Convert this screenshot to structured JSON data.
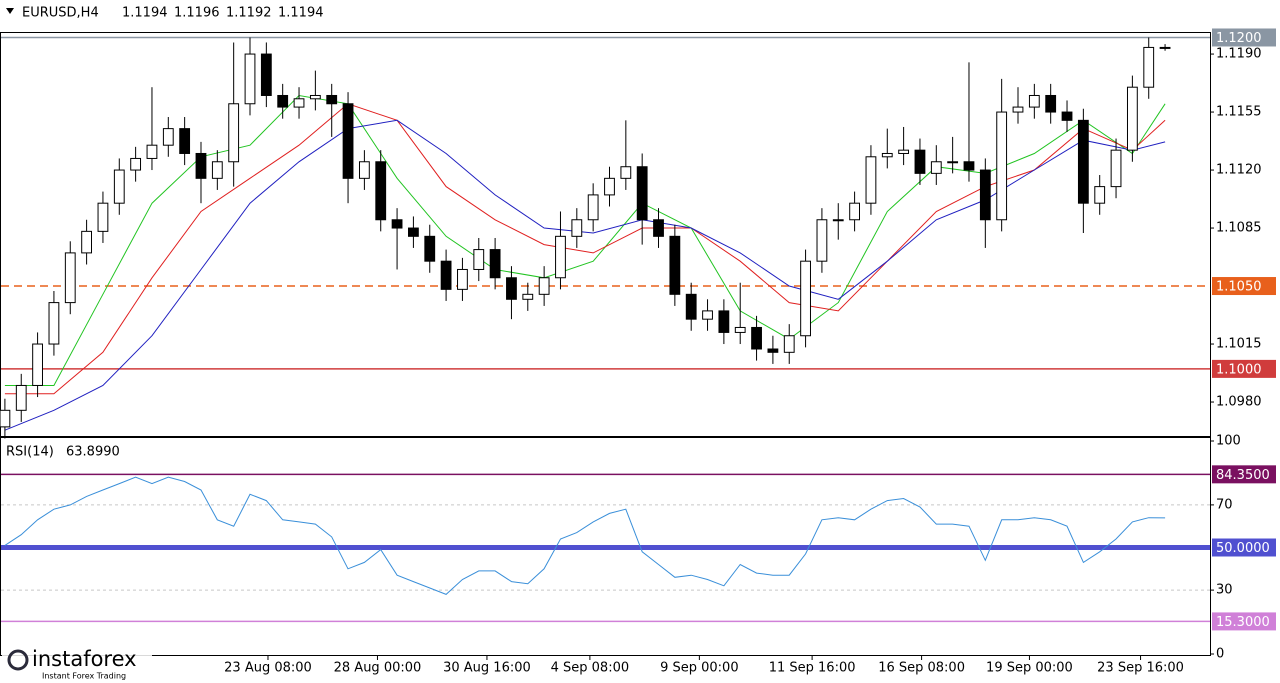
{
  "chart_data": [
    {
      "type": "candlestick",
      "title": "EURUSD,H4",
      "last_ohlc": [
        1.1194,
        1.1196,
        1.1192,
        1.1194
      ],
      "open": [
        1.0965,
        1.0975,
        1.099,
        1.1015,
        1.104,
        1.107,
        1.1083,
        1.11,
        1.112,
        1.1127,
        1.1135,
        1.1145,
        1.113,
        1.1115,
        1.1125,
        1.116,
        1.119,
        1.1165,
        1.1158,
        1.1163,
        1.1165,
        1.116,
        1.1115,
        1.1125,
        1.109,
        1.1085,
        1.108,
        1.1065,
        1.1048,
        1.106,
        1.1072,
        1.1055,
        1.1042,
        1.1045,
        1.1055,
        1.108,
        1.109,
        1.1105,
        1.1115,
        1.1122,
        1.109,
        1.108,
        1.1045,
        1.103,
        1.1035,
        1.1022,
        1.1025,
        1.1012,
        1.101,
        1.102,
        1.1065,
        1.109,
        1.109,
        1.11,
        1.1128,
        1.113,
        1.1132,
        1.1118,
        1.1125,
        1.1125,
        1.112,
        1.109,
        1.1155,
        1.1158,
        1.1165,
        1.1155,
        1.115,
        1.11,
        1.111,
        1.1132,
        1.117,
        1.1194
      ],
      "high": [
        1.0982,
        1.0997,
        1.1022,
        1.1047,
        1.1077,
        1.109,
        1.1107,
        1.1127,
        1.1134,
        1.117,
        1.1152,
        1.1152,
        1.1137,
        1.1132,
        1.1197,
        1.12,
        1.1197,
        1.1172,
        1.117,
        1.118,
        1.1172,
        1.1167,
        1.1132,
        1.1132,
        1.1097,
        1.1092,
        1.1087,
        1.1072,
        1.1067,
        1.1079,
        1.1079,
        1.1062,
        1.1052,
        1.1062,
        1.1095,
        1.1097,
        1.1112,
        1.1122,
        1.115,
        1.113,
        1.1097,
        1.1087,
        1.1052,
        1.1042,
        1.1042,
        1.1052,
        1.1032,
        1.102,
        1.1027,
        1.1072,
        1.1097,
        1.11,
        1.1107,
        1.1135,
        1.1145,
        1.1146,
        1.1139,
        1.1135,
        1.114,
        1.1185,
        1.1127,
        1.1175,
        1.117,
        1.1172,
        1.1172,
        1.1162,
        1.1157,
        1.1117,
        1.1139,
        1.1177,
        1.12,
        1.1196
      ],
      "low": [
        1.0958,
        1.0968,
        1.0983,
        1.1008,
        1.1033,
        1.1063,
        1.1076,
        1.1093,
        1.1113,
        1.112,
        1.1128,
        1.1123,
        1.11,
        1.1108,
        1.111,
        1.1153,
        1.1158,
        1.1151,
        1.1151,
        1.1156,
        1.114,
        1.11,
        1.1108,
        1.1083,
        1.106,
        1.1073,
        1.1058,
        1.1041,
        1.1041,
        1.1053,
        1.1048,
        1.103,
        1.1035,
        1.1038,
        1.1048,
        1.1073,
        1.1083,
        1.1098,
        1.1108,
        1.1075,
        1.1073,
        1.1038,
        1.1023,
        1.1023,
        1.1015,
        1.1015,
        1.1005,
        1.1003,
        1.1003,
        1.1013,
        1.1058,
        1.1078,
        1.1083,
        1.1093,
        1.1121,
        1.1123,
        1.1111,
        1.1111,
        1.1118,
        1.1113,
        1.1073,
        1.1083,
        1.1148,
        1.1151,
        1.1148,
        1.1143,
        1.1082,
        1.1093,
        1.1103,
        1.1125,
        1.1163,
        1.1192
      ],
      "close": [
        1.0975,
        1.099,
        1.1015,
        1.104,
        1.107,
        1.1083,
        1.11,
        1.112,
        1.1127,
        1.1135,
        1.1145,
        1.113,
        1.1115,
        1.1125,
        1.116,
        1.119,
        1.1165,
        1.1158,
        1.1163,
        1.1165,
        1.116,
        1.1115,
        1.1125,
        1.109,
        1.1085,
        1.108,
        1.1065,
        1.1048,
        1.106,
        1.1072,
        1.1055,
        1.1042,
        1.1045,
        1.1055,
        1.108,
        1.109,
        1.1105,
        1.1115,
        1.1122,
        1.109,
        1.108,
        1.1045,
        1.103,
        1.1035,
        1.1022,
        1.1025,
        1.1012,
        1.101,
        1.102,
        1.1065,
        1.109,
        1.109,
        1.11,
        1.1128,
        1.113,
        1.1132,
        1.1118,
        1.1125,
        1.1125,
        1.112,
        1.109,
        1.1155,
        1.1158,
        1.1165,
        1.1155,
        1.115,
        1.11,
        1.111,
        1.1132,
        1.117,
        1.1194,
        1.1194
      ],
      "series": [
        {
          "color": "#22c422",
          "x": [
            0,
            3,
            6,
            9,
            12,
            15,
            18,
            21,
            24,
            27,
            30,
            33,
            36,
            39,
            42,
            45,
            48,
            51,
            54,
            57,
            60,
            63,
            66,
            69,
            71
          ],
          "values": [
            1.099,
            1.099,
            1.1045,
            1.11,
            1.1128,
            1.1135,
            1.1165,
            1.116,
            1.1115,
            1.108,
            1.106,
            1.1055,
            1.1065,
            1.11,
            1.1085,
            1.1035,
            1.1018,
            1.104,
            1.1095,
            1.1122,
            1.1118,
            1.113,
            1.115,
            1.113,
            1.116
          ]
        },
        {
          "color": "#e02020",
          "x": [
            0,
            3,
            6,
            9,
            12,
            15,
            18,
            21,
            24,
            27,
            30,
            33,
            36,
            39,
            42,
            45,
            48,
            51,
            54,
            57,
            60,
            63,
            66,
            69,
            71
          ],
          "values": [
            1.0985,
            1.0985,
            1.101,
            1.1055,
            1.1095,
            1.1115,
            1.1135,
            1.116,
            1.115,
            1.111,
            1.109,
            1.1075,
            1.107,
            1.1085,
            1.1085,
            1.1065,
            1.104,
            1.1035,
            1.1065,
            1.1095,
            1.111,
            1.112,
            1.1145,
            1.1132,
            1.115
          ]
        },
        {
          "color": "#2020c0",
          "x": [
            0,
            3,
            6,
            9,
            12,
            15,
            18,
            21,
            24,
            27,
            30,
            33,
            36,
            39,
            42,
            45,
            48,
            51,
            54,
            57,
            60,
            63,
            66,
            69,
            71
          ],
          "values": [
            1.0963,
            1.0975,
            1.099,
            1.102,
            1.106,
            1.11,
            1.1125,
            1.1145,
            1.115,
            1.113,
            1.1105,
            1.1085,
            1.1082,
            1.109,
            1.1085,
            1.107,
            1.105,
            1.1042,
            1.1065,
            1.109,
            1.1102,
            1.112,
            1.1138,
            1.1132,
            1.1137
          ]
        }
      ],
      "xlim": [
        -0.3,
        73.75
      ],
      "ylim": [
        1.09601,
        1.12015
      ],
      "yticks": [
        {
          "value": 1.098,
          "label": "1.0980"
        },
        1.1015,
        1.1085,
        {
          "value": 1.112,
          "label": "1.1120"
        },
        1.1155,
        {
          "value": 1.119,
          "label": "1.1190"
        }
      ],
      "levels": [
        {
          "value": 1.12,
          "label": "1.1200",
          "color": "#8a96a3",
          "style": "solid"
        },
        {
          "value": 1.105,
          "label": "1.1050",
          "color": "#e8601c",
          "style": "dashed"
        },
        {
          "value": 1.1,
          "label": "1.1000",
          "color": "#d03c3c",
          "style": "solid"
        }
      ],
      "xticks": [
        {
          "value": 16.1,
          "label": "23 Aug 08:00"
        },
        {
          "value": 22.8,
          "label": "28 Aug 00:00"
        },
        {
          "value": 29.5,
          "label": "30 Aug 16:00"
        },
        {
          "value": 35.8,
          "label": "4 Sep 08:00"
        },
        {
          "value": 42.5,
          "label": "9 Sep 00:00"
        },
        {
          "value": 49.4,
          "label": "11 Sep 16:00"
        },
        {
          "value": 56.1,
          "label": "16 Sep 08:00"
        },
        {
          "value": 62.7,
          "label": "19 Sep 00:00"
        },
        {
          "value": 69.5,
          "label": "23 Sep 16:00"
        }
      ]
    },
    {
      "type": "line",
      "title": "RSI(14)",
      "subtitle": "63.8990",
      "color": "#3a8fd9",
      "values": [
        51,
        56,
        63,
        68,
        70,
        74,
        77,
        80,
        83,
        80,
        83,
        81,
        77,
        63,
        60,
        75,
        72,
        63,
        62,
        61,
        55,
        40,
        43,
        49,
        37,
        34,
        31,
        28,
        35,
        39,
        39,
        34,
        33,
        40,
        54,
        57,
        62,
        66,
        68,
        48,
        42,
        36,
        37,
        35,
        32,
        42,
        38,
        37,
        37,
        47,
        63,
        64,
        63,
        68,
        72,
        73,
        69,
        61,
        61,
        60,
        44,
        63,
        63,
        64,
        63,
        60,
        43,
        48,
        54,
        62,
        64,
        63.899
      ],
      "xlim": [
        -0.3,
        73.75
      ],
      "ylim": [
        0,
        100
      ],
      "yticks": [
        100,
        70,
        30,
        0
      ],
      "grid": true,
      "levels": [
        {
          "value": 84.35,
          "label": "84.3500",
          "color": "#7a1060",
          "style": "solid"
        },
        {
          "value": 50,
          "label": "50.0000",
          "color": "#5050d0",
          "style": "thick"
        },
        {
          "value": 15.3,
          "label": "15.3000",
          "color": "#d080d8",
          "style": "solid"
        }
      ]
    }
  ],
  "watermark": {
    "brand": "instaforex",
    "tagline": "Instant Forex Trading"
  }
}
